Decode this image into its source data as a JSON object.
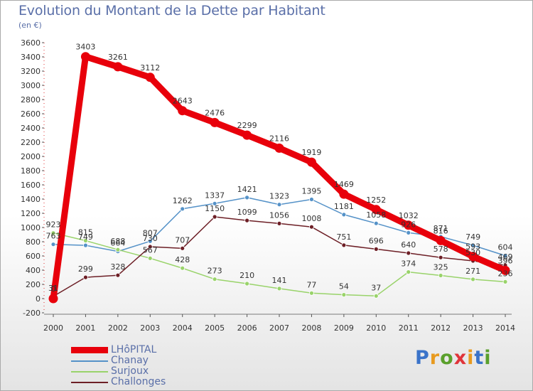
{
  "title": "Evolution du Montant de la Dette par Habitant",
  "subtitle": "(en €)",
  "logo": {
    "text": "Proxiti",
    "letter_colors": [
      "#3a73c9",
      "#e89a1f",
      "#5aa02c",
      "#e0343a",
      "#e89a1f",
      "#3a73c9",
      "#5aa02c"
    ]
  },
  "chart_data": {
    "type": "line",
    "x": [
      "2000",
      "2001",
      "2002",
      "2003",
      "2004",
      "2005",
      "2006",
      "2007",
      "2008",
      "2009",
      "2010",
      "2011",
      "2012",
      "2013",
      "2014"
    ],
    "ylim": [
      -200,
      3600
    ],
    "yticks": [
      -200,
      0,
      200,
      400,
      600,
      800,
      1000,
      1200,
      1400,
      1600,
      1800,
      2000,
      2200,
      2400,
      2600,
      2800,
      3000,
      3200,
      3400,
      3600
    ],
    "grid": false,
    "legend_position": "bottom-left",
    "series": [
      {
        "name": "LHôPITAL",
        "color": "#e8000b",
        "style": "thick",
        "values": [
          0,
          3403,
          3261,
          3112,
          2643,
          2476,
          2299,
          2116,
          1919,
          1469,
          1252,
          1032,
          816,
          593,
          396
        ]
      },
      {
        "name": "Chanay",
        "color": "#5592c8",
        "style": "thin",
        "values": [
          763,
          749,
          664,
          807,
          1262,
          1337,
          1421,
          1323,
          1395,
          1181,
          1058,
          926,
          871,
          749,
          604
        ]
      },
      {
        "name": "Surjoux",
        "color": "#99d36a",
        "style": "thin",
        "values": [
          923,
          815,
          688,
          567,
          428,
          273,
          210,
          141,
          77,
          54,
          37,
          374,
          325,
          271,
          236
        ]
      },
      {
        "name": "Challonges",
        "color": "#6d1f26",
        "style": "thin",
        "values": [
          31,
          299,
          328,
          730,
          707,
          1150,
          1099,
          1056,
          1008,
          751,
          696,
          640,
          578,
          530,
          469
        ]
      }
    ]
  }
}
